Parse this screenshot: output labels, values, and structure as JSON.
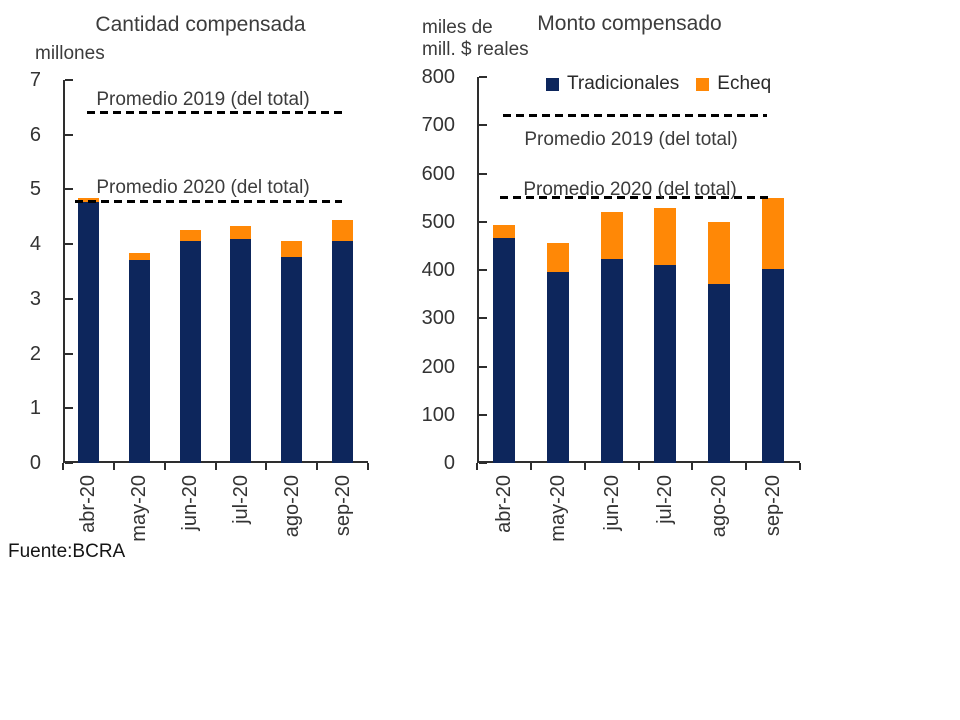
{
  "source_note": "Fuente:BCRA",
  "colors": {
    "tradicionales": "#0d265c",
    "echeq": "#ff8806",
    "axis": "#2e2e2e",
    "text": "#3c3c3c",
    "reference_line": "#000000"
  },
  "chart_data": [
    {
      "id": "cantidad",
      "type": "bar",
      "stacked": true,
      "title": "Cantidad compensada",
      "y_axis_unit": "millones",
      "categories": [
        "abr-20",
        "may-20",
        "jun-20",
        "jul-20",
        "ago-20",
        "sep-20"
      ],
      "series": [
        {
          "name": "Tradicionales",
          "color_key": "tradicionales",
          "values": [
            4.77,
            3.71,
            4.05,
            4.09,
            3.77,
            4.06
          ]
        },
        {
          "name": "Echeq",
          "color_key": "echeq",
          "values": [
            0.08,
            0.13,
            0.2,
            0.25,
            0.29,
            0.39
          ]
        }
      ],
      "ylim": [
        0,
        7
      ],
      "ytick_step": 1,
      "grid": false,
      "legend_visible": false,
      "reference_lines": [
        {
          "label": "Promedio 2019 (del total)",
          "value": 6.4
        },
        {
          "label": "Promedio 2020 (del total)",
          "value": 4.78
        }
      ]
    },
    {
      "id": "monto",
      "type": "bar",
      "stacked": true,
      "title": "Monto compensado",
      "y_axis_unit": "miles de\nmill. $ reales",
      "categories": [
        "abr-20",
        "may-20",
        "jun-20",
        "jul-20",
        "ago-20",
        "sep-20"
      ],
      "series": [
        {
          "name": "Tradicionales",
          "color_key": "tradicionales",
          "values": [
            467,
            395,
            423,
            411,
            371,
            403
          ]
        },
        {
          "name": "Echeq",
          "color_key": "echeq",
          "values": [
            26,
            61,
            97,
            118,
            129,
            146
          ]
        }
      ],
      "ylim": [
        0,
        800
      ],
      "ytick_step": 100,
      "grid": false,
      "legend_visible": true,
      "legend": [
        "Tradicionales",
        "Echeq"
      ],
      "reference_lines": [
        {
          "label": "Promedio 2019 (del total)",
          "value": 720
        },
        {
          "label": "Promedio 2020 (del total)",
          "value": 550
        }
      ]
    }
  ]
}
